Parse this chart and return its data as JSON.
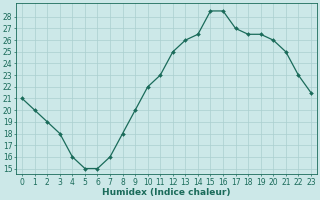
{
  "x": [
    0,
    1,
    2,
    3,
    4,
    5,
    6,
    7,
    8,
    9,
    10,
    11,
    12,
    13,
    14,
    15,
    16,
    17,
    18,
    19,
    20,
    21,
    22,
    23
  ],
  "y": [
    21,
    20,
    19,
    18,
    16,
    15,
    15,
    16,
    18,
    20,
    22,
    23,
    25,
    26,
    26.5,
    28.5,
    28.5,
    27,
    26.5,
    26.5,
    26,
    25,
    23,
    21.5
  ],
  "line_color": "#1a6b5a",
  "marker": "D",
  "marker_size": 2.0,
  "bg_color": "#cce8e8",
  "grid_color": "#aacfcf",
  "xlabel": "Humidex (Indice chaleur)",
  "xlim": [
    -0.5,
    23.5
  ],
  "ylim": [
    14.5,
    29.2
  ],
  "yticks": [
    15,
    16,
    17,
    18,
    19,
    20,
    21,
    22,
    23,
    24,
    25,
    26,
    27,
    28
  ],
  "xticks": [
    0,
    1,
    2,
    3,
    4,
    5,
    6,
    7,
    8,
    9,
    10,
    11,
    12,
    13,
    14,
    15,
    16,
    17,
    18,
    19,
    20,
    21,
    22,
    23
  ],
  "tick_color": "#1a6b5a",
  "xlabel_fontsize": 6.5,
  "tick_fontsize": 5.5
}
